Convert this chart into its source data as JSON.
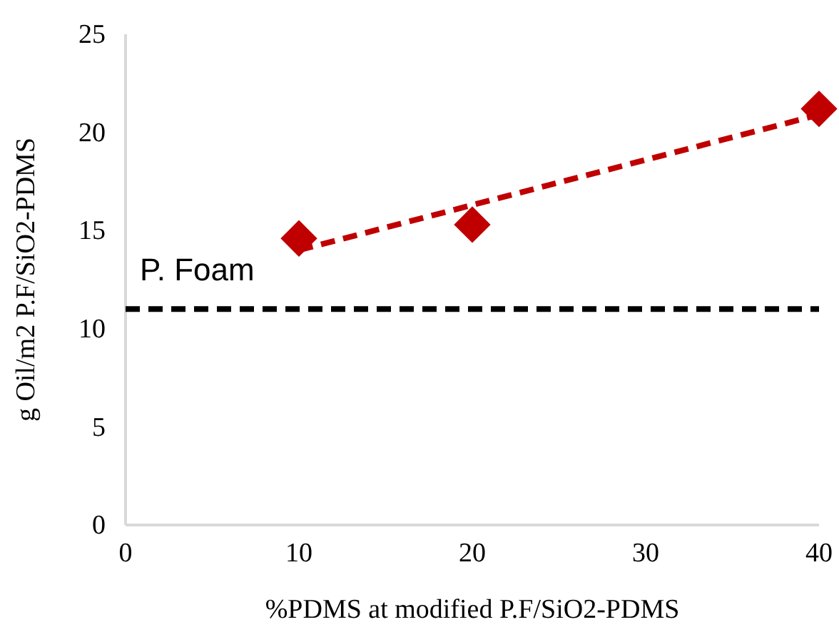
{
  "chart_data": {
    "type": "scatter",
    "xlabel": "%PDMS at modified P.F/SiO2-PDMS",
    "ylabel": "g Oil/m2 P.F/SiO2-PDMS",
    "x": [
      10,
      20,
      40
    ],
    "series": [
      {
        "color": "#c00000",
        "values": [
          14.6,
          15.3,
          21.2
        ],
        "marker": "diamond"
      },
      {
        "type": "line",
        "color": "#c00000",
        "x": [
          10,
          40
        ],
        "values": [
          14.0,
          20.9
        ],
        "line_style": "dashed",
        "marker": "none"
      }
    ],
    "ref_lines": [
      {
        "axis": "y",
        "value": 11,
        "label": "P. Foam",
        "color": "#000000",
        "line_style": "dashed"
      }
    ],
    "xlim": [
      0,
      40
    ],
    "xticks": [
      0,
      10,
      20,
      30,
      40
    ],
    "ylim": [
      0,
      25
    ],
    "yticks": [
      0,
      5,
      10,
      15,
      20,
      25
    ],
    "grid": false
  }
}
